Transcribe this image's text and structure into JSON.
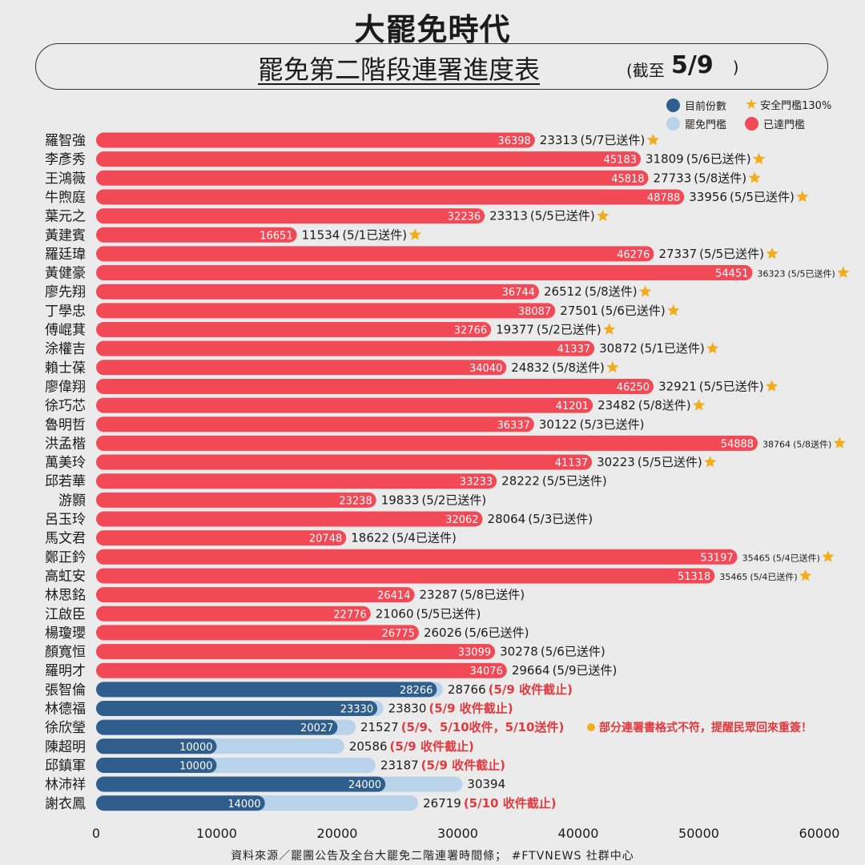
{
  "header": {
    "logo": "大罷免時代",
    "title": "罷免第二階段連署進度表",
    "subtitle": "(截至",
    "date": "5/9",
    "date_suffix": ")"
  },
  "legend": {
    "current": "目前份數",
    "threshold": "罷免門檻",
    "safe": "安全門檻130%",
    "reached": "已達門檻"
  },
  "colors": {
    "reached": "#f14956",
    "current": "#2f5d8c",
    "threshold": "#b9d4ea",
    "star": "#f2ad1c",
    "note": "#e0393e"
  },
  "footer": "資料來源／罷團公告及全台大罷免二階連署時間條； #FTVNEWS 社群中心",
  "chart_data": {
    "type": "bar",
    "orientation": "horizontal",
    "xlim": [
      0,
      60000
    ],
    "x_ticks": [
      "0",
      "10000",
      "20000",
      "30000",
      "40000",
      "50000",
      "60000"
    ],
    "grid": false,
    "legend_position": "top-right",
    "rows": [
      {
        "name": "羅智強",
        "value": "36398",
        "threshold": "23313",
        "note": "(5/7已送件)",
        "star": true
      },
      {
        "name": "李彥秀",
        "value": "45183",
        "threshold": "31809",
        "note": "(5/6已送件)",
        "star": true
      },
      {
        "name": "王鴻薇",
        "value": "45818",
        "threshold": "27733",
        "note": "(5/8送件)",
        "star": true
      },
      {
        "name": "牛煦庭",
        "value": "48788",
        "threshold": "33956",
        "note": "(5/5已送件)",
        "star": true
      },
      {
        "name": "葉元之",
        "value": "32236",
        "threshold": "23313",
        "note": "(5/5已送件)",
        "star": true
      },
      {
        "name": "黃建賓",
        "value": "16651",
        "threshold": "11534",
        "note": "(5/1已送件)",
        "star": true
      },
      {
        "name": "羅廷瑋",
        "value": "46276",
        "threshold": "27337",
        "note": "(5/5已送件)",
        "star": true
      },
      {
        "name": "黃健豪",
        "value": "54451",
        "threshold": "36323",
        "note": "(5/5已送件)",
        "star": true,
        "small": true
      },
      {
        "name": "廖先翔",
        "value": "36744",
        "threshold": "26512",
        "note": "(5/8送件)",
        "star": true
      },
      {
        "name": "丁學忠",
        "value": "38087",
        "threshold": "27501",
        "note": "(5/6已送件)",
        "star": true
      },
      {
        "name": "傅崐萁",
        "value": "32766",
        "threshold": "19377",
        "note": "(5/2已送件)",
        "star": true
      },
      {
        "name": "涂權吉",
        "value": "41337",
        "threshold": "30872",
        "note": "(5/1已送件)",
        "star": true
      },
      {
        "name": "賴士葆",
        "value": "34040",
        "threshold": "24832",
        "note": "(5/8送件)",
        "star": true
      },
      {
        "name": "廖偉翔",
        "value": "46250",
        "threshold": "32921",
        "note": "(5/5已送件)",
        "star": true
      },
      {
        "name": "徐巧芯",
        "value": "41201",
        "threshold": "23482",
        "note": "(5/8送件)",
        "star": true
      },
      {
        "name": "魯明哲",
        "value": "36337",
        "threshold": "30122",
        "note": "(5/3已送件)",
        "star": false
      },
      {
        "name": "洪孟楷",
        "value": "54888",
        "threshold": "38764",
        "note": "(5/8送件)",
        "star": true,
        "small": true
      },
      {
        "name": "萬美玲",
        "value": "41137",
        "threshold": "30223",
        "note": "(5/5已送件)",
        "star": true
      },
      {
        "name": "邱若華",
        "value": "33233",
        "threshold": "28222",
        "note": "(5/5已送件)",
        "star": false
      },
      {
        "name": "游顥",
        "value": "23238",
        "threshold": "19833",
        "note": "(5/2已送件)",
        "star": false
      },
      {
        "name": "呂玉玲",
        "value": "32062",
        "threshold": "28064",
        "note": "(5/3已送件)",
        "star": false
      },
      {
        "name": "馬文君",
        "value": "20748",
        "threshold": "18622",
        "note": "(5/4已送件)",
        "star": false
      },
      {
        "name": "鄭正鈐",
        "value": "53197",
        "threshold": "35465",
        "note": "(5/4已送件)",
        "star": true,
        "small": true
      },
      {
        "name": "高虹安",
        "value": "51318",
        "threshold": "35465",
        "note": "(5/4已送件)",
        "star": true,
        "small": true
      },
      {
        "name": "林思銘",
        "value": "26414",
        "threshold": "23287",
        "note": "(5/8已送件)",
        "star": false
      },
      {
        "name": "江啟臣",
        "value": "22776",
        "threshold": "21060",
        "note": "(5/5已送件)",
        "star": false
      },
      {
        "name": "楊瓊瓔",
        "value": "26775",
        "threshold": "26026",
        "note": "(5/6已送件)",
        "star": false
      },
      {
        "name": "顏寬恒",
        "value": "33099",
        "threshold": "30278",
        "note": "(5/6已送件)",
        "star": false
      },
      {
        "name": "羅明才",
        "value": "34076",
        "threshold": "29664",
        "note": "(5/9已送件)",
        "star": false
      },
      {
        "name": "張智倫",
        "value": "28266",
        "threshold": "28766",
        "note": "(5/9 收件截止)",
        "star": false
      },
      {
        "name": "林德福",
        "value": "23330",
        "threshold": "23830",
        "note": "(5/9 收件截止)",
        "star": false
      },
      {
        "name": "徐欣瑩",
        "value": "20027",
        "threshold": "21527",
        "note": "(5/9、5/10收件，5/10送件)",
        "star": false,
        "extra": "部分連署書格式不符，提醒民眾回來重簽！"
      },
      {
        "name": "陳超明",
        "value": "10000",
        "threshold": "20586",
        "note": "(5/9 收件截止)",
        "star": false
      },
      {
        "name": "邱鎮軍",
        "value": "10000",
        "threshold": "23187",
        "note": "(5/9 收件截止)",
        "star": false
      },
      {
        "name": "林沛祥",
        "value": "24000",
        "threshold": "30394",
        "note": "",
        "star": false
      },
      {
        "name": "謝衣鳳",
        "value": "14000",
        "threshold": "26719",
        "note": "(5/10 收件截止)",
        "star": false
      }
    ]
  }
}
